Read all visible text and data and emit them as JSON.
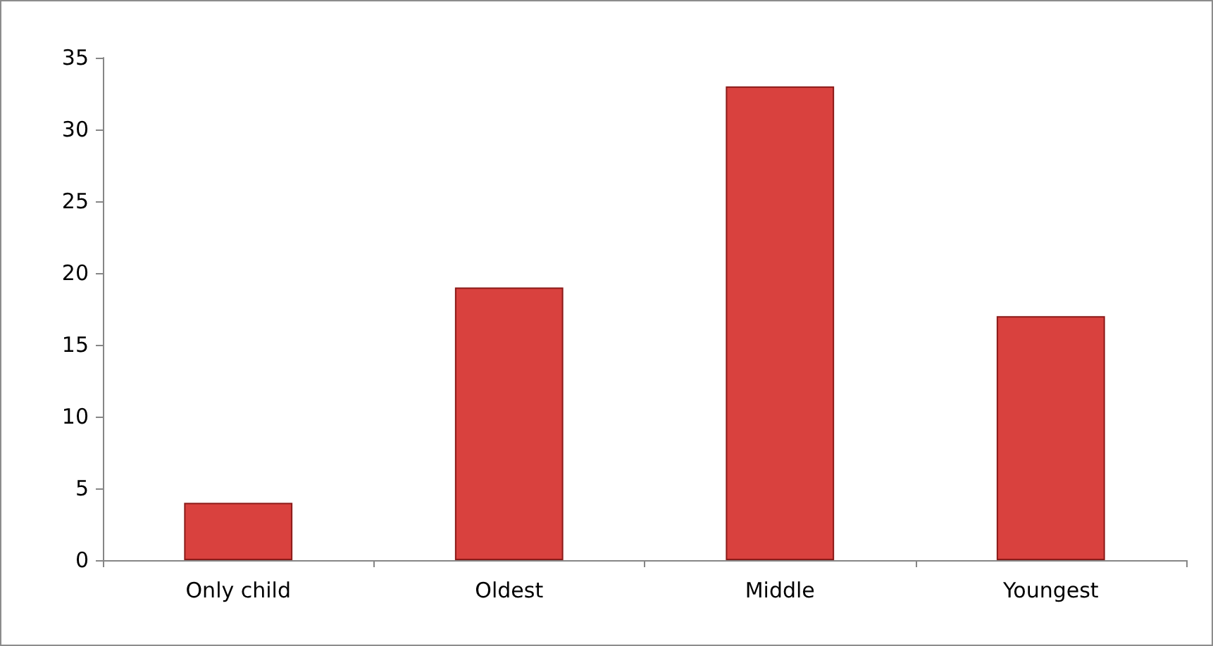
{
  "chart_data": {
    "type": "bar",
    "categories": [
      "Only child",
      "Oldest",
      "Middle",
      "Youngest"
    ],
    "values": [
      4,
      19,
      33,
      17
    ],
    "color": "#d9413e",
    "ylim": [
      0,
      35
    ],
    "yticks": [
      0,
      5,
      10,
      15,
      20,
      25,
      30,
      35
    ],
    "grid": false
  }
}
